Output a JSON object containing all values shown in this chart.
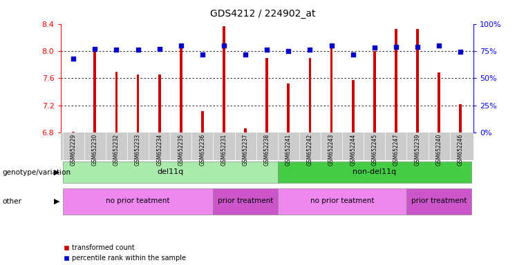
{
  "title": "GDS4212 / 224902_at",
  "samples": [
    "GSM652229",
    "GSM652230",
    "GSM652232",
    "GSM652233",
    "GSM652234",
    "GSM652235",
    "GSM652236",
    "GSM652231",
    "GSM652237",
    "GSM652238",
    "GSM652241",
    "GSM652242",
    "GSM652243",
    "GSM652244",
    "GSM652245",
    "GSM652247",
    "GSM652239",
    "GSM652240",
    "GSM652246"
  ],
  "red_values": [
    6.81,
    8.0,
    7.69,
    7.65,
    7.65,
    8.05,
    7.12,
    8.37,
    6.86,
    7.9,
    7.52,
    7.9,
    8.04,
    7.57,
    8.0,
    8.32,
    8.32,
    7.68,
    7.22
  ],
  "blue_values": [
    68,
    77,
    76,
    76,
    77,
    80,
    72,
    80,
    72,
    76,
    75,
    76,
    80,
    72,
    78,
    79,
    79,
    80,
    74
  ],
  "ylim_left": [
    6.8,
    8.4
  ],
  "ylim_right": [
    0,
    100
  ],
  "yticks_left": [
    6.8,
    7.2,
    7.6,
    8.0,
    8.4
  ],
  "yticks_right": [
    0,
    25,
    50,
    75,
    100
  ],
  "ytick_labels_right": [
    "0%",
    "25%",
    "50%",
    "75%",
    "100%"
  ],
  "bar_color": "#cc0000",
  "dot_color": "#0000cc",
  "background_color": "#ffffff",
  "genotype_groups": [
    {
      "label": "del11q",
      "start": 0,
      "end": 10,
      "color": "#aaeaaa"
    },
    {
      "label": "non-del11q",
      "start": 10,
      "end": 19,
      "color": "#44cc44"
    }
  ],
  "treatment_groups": [
    {
      "label": "no prior teatment",
      "start": 0,
      "end": 7,
      "color": "#ee88ee"
    },
    {
      "label": "prior treatment",
      "start": 7,
      "end": 10,
      "color": "#cc55cc"
    },
    {
      "label": "no prior teatment",
      "start": 10,
      "end": 16,
      "color": "#ee88ee"
    },
    {
      "label": "prior treatment",
      "start": 16,
      "end": 19,
      "color": "#cc55cc"
    }
  ],
  "legend_items": [
    {
      "label": "transformed count",
      "color": "#cc0000"
    },
    {
      "label": "percentile rank within the sample",
      "color": "#0000cc"
    }
  ],
  "bar_width": 0.12,
  "genotype_label": "genotype/variation",
  "other_label": "other",
  "tick_bg_color": "#cccccc"
}
